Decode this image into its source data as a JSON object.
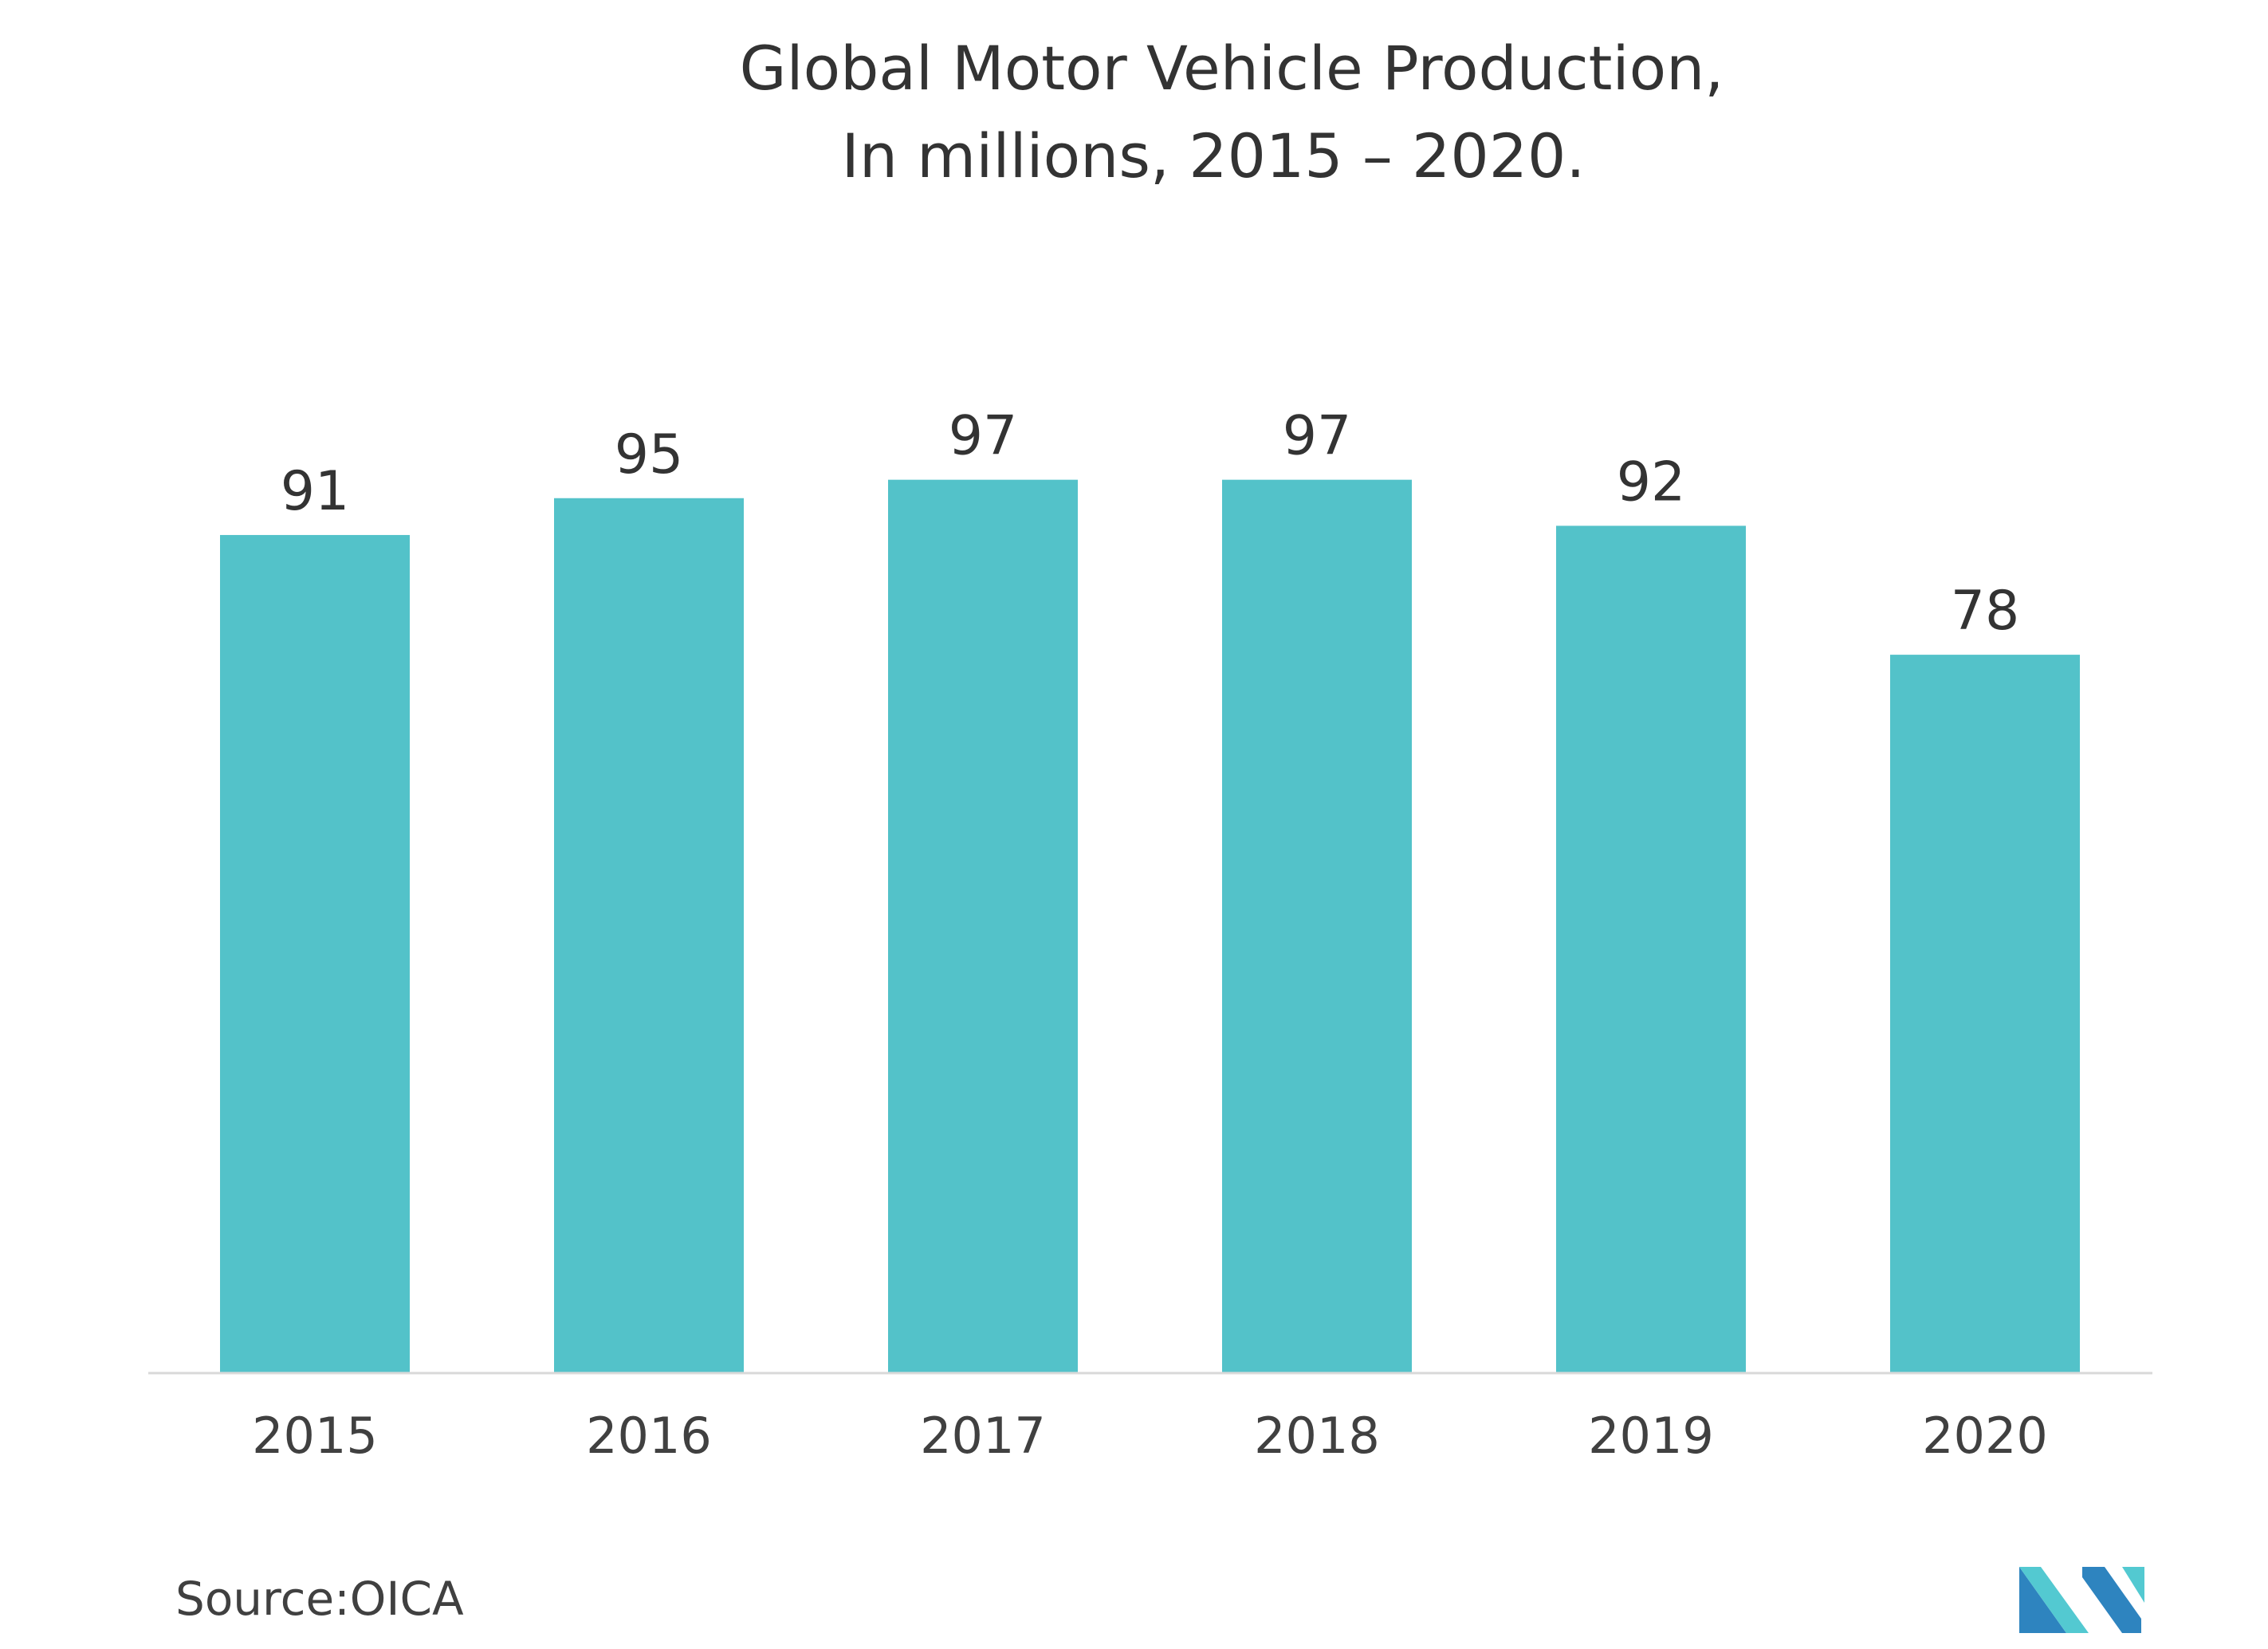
{
  "chart_data": {
    "type": "bar",
    "title": [
      "Global Motor Vehicle Production,",
      "In millions, 2015 – 2020."
    ],
    "categories": [
      "2015",
      "2016",
      "2017",
      "2018",
      "2019",
      "2020"
    ],
    "values": [
      91,
      95,
      97,
      97,
      92,
      78
    ],
    "data_labels": [
      "91",
      "95",
      "97",
      "97",
      "92",
      "78"
    ],
    "xlabel": "",
    "ylabel": "",
    "ylim": [
      0,
      100
    ],
    "grid": false,
    "legend": "none",
    "bar_color": "#53c2c9",
    "axis_color": "#d9d9d9"
  },
  "source": "Source:OICA",
  "logo": {
    "name": "MI",
    "colors": [
      "#2e84bf",
      "#53c9d1"
    ]
  }
}
